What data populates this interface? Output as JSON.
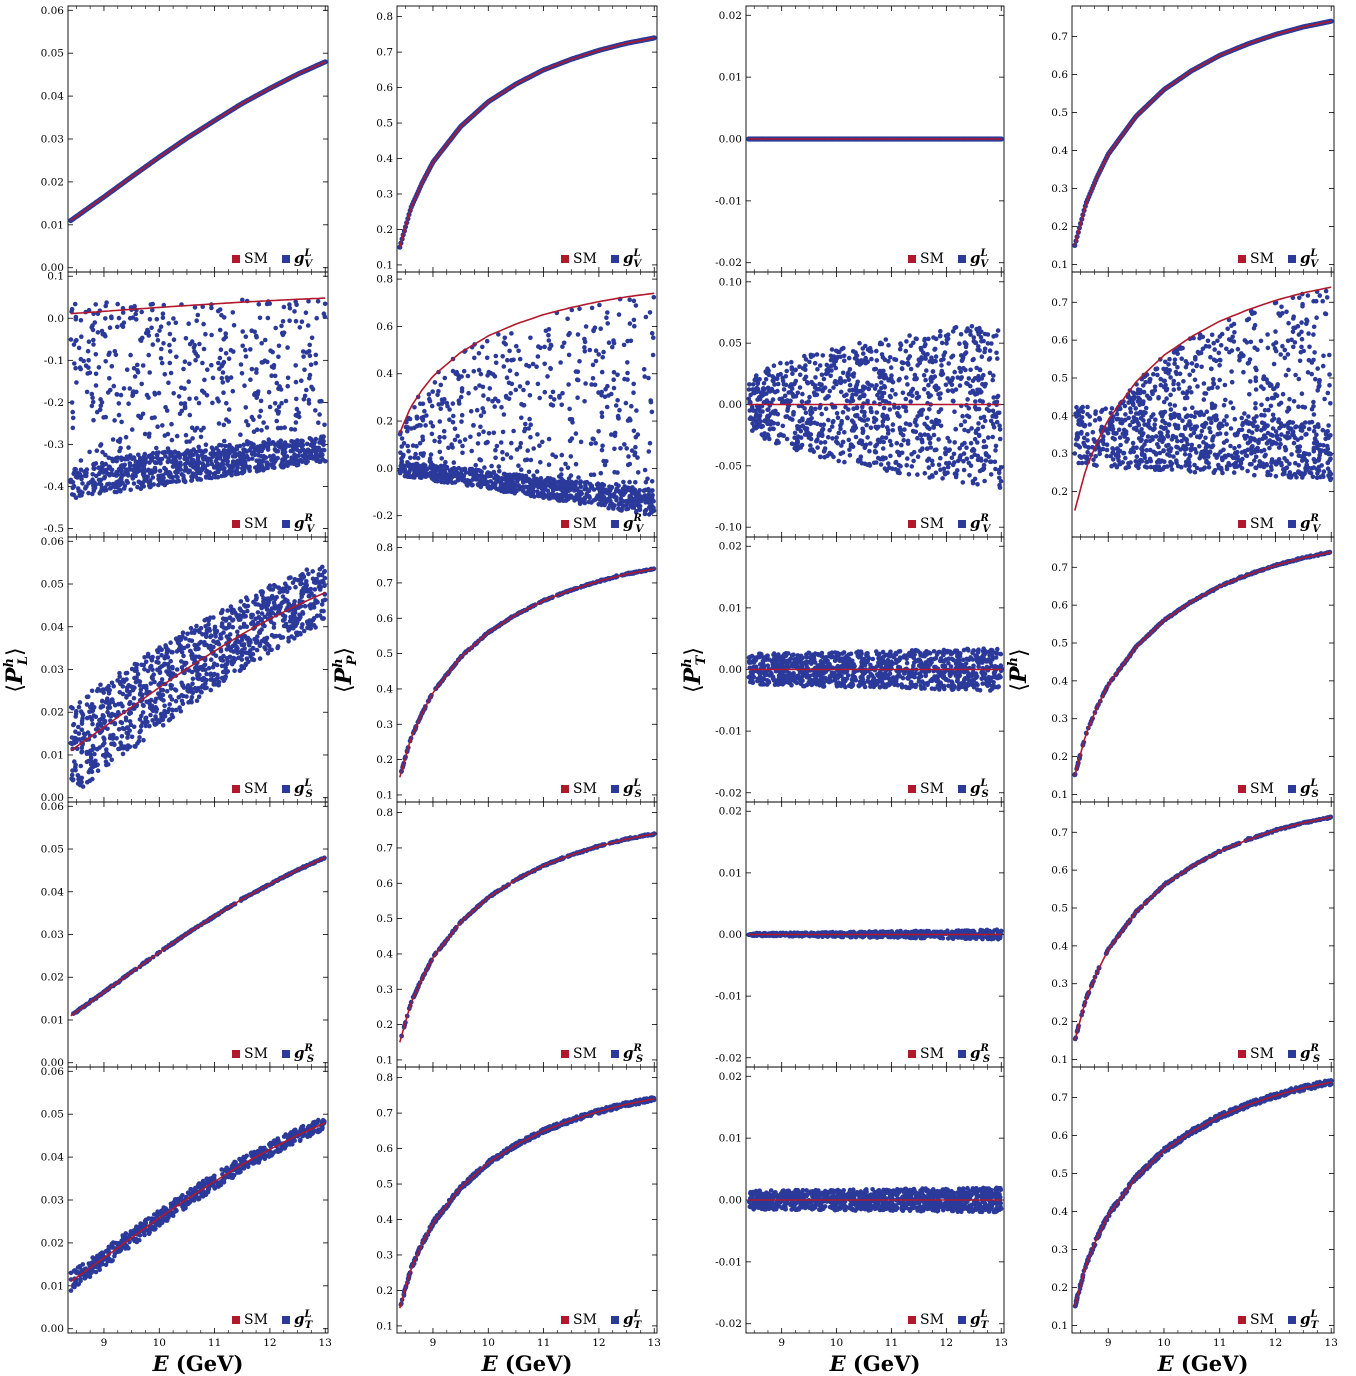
{
  "figure": {
    "x_axis_label_main": "E",
    "x_axis_label_unit": "(GeV)",
    "legend_sm": "SM",
    "colors": {
      "sm": "#b2182b",
      "np": "#2b3a9a",
      "frame": "#000000"
    },
    "column_ylabels": [
      {
        "base": "P",
        "sup": "h",
        "sub": "L"
      },
      {
        "base": "P",
        "sup": "h",
        "sub": "P"
      },
      {
        "base": "P",
        "sup": "h",
        "sub": "T"
      },
      {
        "base": "P",
        "sup": "h",
        "sub": ""
      }
    ],
    "row_couplings": [
      {
        "base": "g",
        "sub": "V",
        "sup": "L"
      },
      {
        "base": "g",
        "sub": "V",
        "sup": "R"
      },
      {
        "base": "g",
        "sub": "S",
        "sup": "L"
      },
      {
        "base": "g",
        "sub": "S",
        "sup": "R"
      },
      {
        "base": "g",
        "sub": "T",
        "sup": "L"
      }
    ]
  },
  "chart_data": {
    "type": "scatter",
    "xlim": [
      8.35,
      13.05
    ],
    "x_ticks": [
      "9",
      "10",
      "11",
      "12",
      "13"
    ],
    "columns": [
      {
        "ylabel": "⟨P_L^h⟩",
        "sm_curve": {
          "x": [
            8.4,
            9,
            9.5,
            10,
            10.5,
            11,
            11.5,
            12,
            12.5,
            13
          ],
          "y": [
            0.011,
            0.0165,
            0.0212,
            0.0258,
            0.0302,
            0.0343,
            0.0383,
            0.0418,
            0.0451,
            0.048
          ]
        },
        "panels": [
          {
            "coupling": "g_V^L",
            "ylim": [
              -0.001,
              0.061
            ],
            "y_ticks": [
              "0.00",
              "0.01",
              "0.02",
              "0.03",
              "0.04",
              "0.05",
              "0.06"
            ],
            "spread": "none"
          },
          {
            "coupling": "g_V^R",
            "ylim": [
              -0.52,
              0.11
            ],
            "y_ticks": [
              "-0.5",
              "-0.4",
              "-0.3",
              "-0.2",
              "-0.1",
              "0.0",
              "0.1"
            ],
            "spread": "band_low",
            "band_low_range": [
              [
                8.4,
                -0.43,
                -0.34
              ],
              [
                13,
                -0.34,
                -0.28
              ]
            ],
            "scatter_upper": 0.045
          },
          {
            "coupling": "g_S^L",
            "ylim": [
              -0.001,
              0.061
            ],
            "y_ticks": [
              "0.00",
              "0.01",
              "0.02",
              "0.03",
              "0.04",
              "0.05",
              "0.06"
            ],
            "spread": "band",
            "half_width": [
              0.011,
              0.007
            ]
          },
          {
            "coupling": "g_S^R",
            "ylim": [
              -0.001,
              0.061
            ],
            "y_ticks": [
              "0.00",
              "0.01",
              "0.02",
              "0.03",
              "0.04",
              "0.05",
              "0.06"
            ],
            "spread": "thin"
          },
          {
            "coupling": "g_T^L",
            "ylim": [
              -0.001,
              0.061
            ],
            "y_ticks": [
              "0.00",
              "0.01",
              "0.02",
              "0.03",
              "0.04",
              "0.05",
              "0.06"
            ],
            "spread": "narrow",
            "half_width": [
              0.0022,
              0.0015
            ]
          }
        ]
      },
      {
        "ylabel": "⟨P_P^h⟩",
        "sm_curve": {
          "x": [
            8.4,
            8.6,
            8.8,
            9,
            9.5,
            10,
            10.5,
            11,
            11.5,
            12,
            12.5,
            13
          ],
          "y": [
            0.15,
            0.26,
            0.33,
            0.39,
            0.49,
            0.56,
            0.61,
            0.65,
            0.68,
            0.705,
            0.725,
            0.74
          ]
        },
        "panels": [
          {
            "coupling": "g_V^L",
            "ylim": [
              0.08,
              0.83
            ],
            "y_ticks": [
              "0.1",
              "0.2",
              "0.3",
              "0.4",
              "0.5",
              "0.6",
              "0.7",
              "0.8"
            ],
            "spread": "none"
          },
          {
            "coupling": "g_V^R",
            "ylim": [
              -0.29,
              0.83
            ],
            "y_ticks": [
              "-0.2",
              "0.0",
              "0.2",
              "0.4",
              "0.6",
              "0.8"
            ],
            "spread": "band_low",
            "band_low_range": [
              [
                8.4,
                -0.03,
                0.03
              ],
              [
                13,
                -0.2,
                -0.09
              ]
            ],
            "scatter_upper": "sm"
          },
          {
            "coupling": "g_S^L",
            "ylim": [
              0.08,
              0.83
            ],
            "y_ticks": [
              "0.1",
              "0.2",
              "0.3",
              "0.4",
              "0.5",
              "0.6",
              "0.7",
              "0.8"
            ],
            "spread": "thin"
          },
          {
            "coupling": "g_S^R",
            "ylim": [
              0.08,
              0.83
            ],
            "y_ticks": [
              "0.1",
              "0.2",
              "0.3",
              "0.4",
              "0.5",
              "0.6",
              "0.7",
              "0.8"
            ],
            "spread": "thin"
          },
          {
            "coupling": "g_T^L",
            "ylim": [
              0.08,
              0.83
            ],
            "y_ticks": [
              "0.1",
              "0.2",
              "0.3",
              "0.4",
              "0.5",
              "0.6",
              "0.7",
              "0.8"
            ],
            "spread": "narrow",
            "half_width": [
              0.006,
              0.006
            ]
          }
        ]
      },
      {
        "ylabel": "⟨P_T^h⟩",
        "sm_curve": {
          "x": [
            8.4,
            13
          ],
          "y": [
            0,
            0
          ]
        },
        "panels": [
          {
            "coupling": "g_V^L",
            "ylim": [
              -0.0215,
              0.0215
            ],
            "y_ticks": [
              "-0.02",
              "-0.01",
              "0.00",
              "0.01",
              "0.02"
            ],
            "spread": "none"
          },
          {
            "coupling": "g_V^R",
            "ylim": [
              -0.108,
              0.108
            ],
            "y_ticks": [
              "-0.10",
              "-0.05",
              "0.00",
              "0.05",
              "0.10"
            ],
            "spread": "fan",
            "half_width": [
              0.015,
              0.068
            ]
          },
          {
            "coupling": "g_S^L",
            "ylim": [
              -0.0215,
              0.0215
            ],
            "y_ticks": [
              "-0.02",
              "-0.01",
              "0.00",
              "0.01",
              "0.02"
            ],
            "spread": "band",
            "half_width": [
              0.0025,
              0.0035
            ]
          },
          {
            "coupling": "g_S^R",
            "ylim": [
              -0.0215,
              0.0215
            ],
            "y_ticks": [
              "-0.02",
              "-0.01",
              "0.00",
              "0.01",
              "0.02"
            ],
            "spread": "narrow",
            "half_width": [
              0.0002,
              0.0008
            ]
          },
          {
            "coupling": "g_T^L",
            "ylim": [
              -0.0215,
              0.0215
            ],
            "y_ticks": [
              "-0.02",
              "-0.01",
              "0.00",
              "0.01",
              "0.02"
            ],
            "spread": "band",
            "half_width": [
              0.0015,
              0.002
            ]
          }
        ]
      },
      {
        "ylabel": "⟨P^h⟩",
        "sm_curve": {
          "x": [
            8.4,
            8.6,
            8.8,
            9,
            9.5,
            10,
            10.5,
            11,
            11.5,
            12,
            12.5,
            13
          ],
          "y": [
            0.15,
            0.26,
            0.33,
            0.39,
            0.49,
            0.56,
            0.61,
            0.65,
            0.68,
            0.705,
            0.725,
            0.74
          ]
        },
        "panels": [
          {
            "coupling": "g_V^L",
            "ylim": [
              0.08,
              0.78
            ],
            "y_ticks": [
              "0.1",
              "0.2",
              "0.3",
              "0.4",
              "0.5",
              "0.6",
              "0.7"
            ],
            "spread": "none"
          },
          {
            "coupling": "g_V^R",
            "ylim": [
              0.08,
              0.78
            ],
            "y_ticks": [
              "0.2",
              "0.3",
              "0.4",
              "0.5",
              "0.6",
              "0.7"
            ],
            "spread": "band_low",
            "band_low_range": [
              [
                8.4,
                0.27,
                0.43
              ],
              [
                13,
                0.23,
                0.38
              ]
            ],
            "scatter_upper": "sm"
          },
          {
            "coupling": "g_S^L",
            "ylim": [
              0.08,
              0.78
            ],
            "y_ticks": [
              "0.1",
              "0.2",
              "0.3",
              "0.4",
              "0.5",
              "0.6",
              "0.7"
            ],
            "spread": "thin"
          },
          {
            "coupling": "g_S^R",
            "ylim": [
              0.08,
              0.78
            ],
            "y_ticks": [
              "0.1",
              "0.2",
              "0.3",
              "0.4",
              "0.5",
              "0.6",
              "0.7"
            ],
            "spread": "thin"
          },
          {
            "coupling": "g_T^L",
            "ylim": [
              0.08,
              0.78
            ],
            "y_ticks": [
              "0.1",
              "0.2",
              "0.3",
              "0.4",
              "0.5",
              "0.6",
              "0.7"
            ],
            "spread": "narrow",
            "half_width": [
              0.006,
              0.007
            ]
          }
        ]
      }
    ]
  }
}
